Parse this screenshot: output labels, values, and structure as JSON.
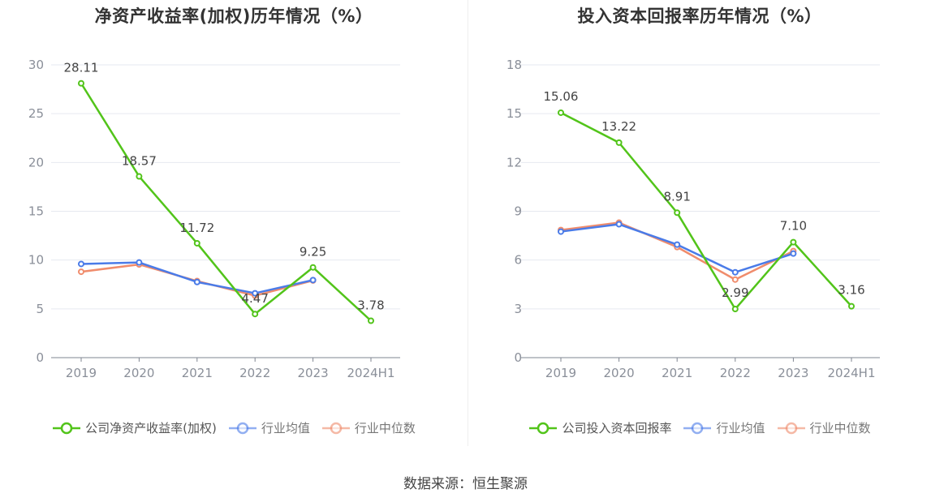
{
  "chart_data": [
    {
      "type": "line",
      "title": "净资产收益率(加权)历年情况（%）",
      "categories": [
        "2019",
        "2020",
        "2021",
        "2022",
        "2023",
        "2024H1"
      ],
      "ylim": [
        0,
        30
      ],
      "yticks": [
        0,
        5,
        10,
        15,
        20,
        25,
        30
      ],
      "grid": true,
      "legend_position": "bottom",
      "series": [
        {
          "name": "公司净资产收益率(加权)",
          "color": "#52c41a",
          "values": [
            28.11,
            18.57,
            11.72,
            4.47,
            9.25,
            3.78
          ],
          "labels": [
            "28.11",
            "18.57",
            "11.72",
            "4.47",
            "9.25",
            "3.78"
          ]
        },
        {
          "name": "行业均值",
          "color": "#4a7be8",
          "values": [
            9.6,
            9.75,
            7.75,
            6.6,
            7.95,
            null
          ]
        },
        {
          "name": "行业中位数",
          "color": "#f08c6c",
          "values": [
            8.8,
            9.55,
            7.85,
            6.35,
            7.9,
            null
          ]
        }
      ]
    },
    {
      "type": "line",
      "title": "投入资本回报率历年情况（%）",
      "categories": [
        "2019",
        "2020",
        "2021",
        "2022",
        "2023",
        "2024H1"
      ],
      "ylim": [
        0,
        18
      ],
      "yticks": [
        0,
        3,
        6,
        9,
        12,
        15,
        18
      ],
      "grid": true,
      "legend_position": "bottom",
      "series": [
        {
          "name": "公司投入资本回报率",
          "color": "#52c41a",
          "values": [
            15.06,
            13.22,
            8.91,
            2.99,
            7.1,
            3.16
          ],
          "labels": [
            "15.06",
            "13.22",
            "8.91",
            "2.99",
            "7.10",
            "3.16"
          ]
        },
        {
          "name": "行业均值",
          "color": "#4a7be8",
          "values": [
            7.75,
            8.2,
            6.95,
            5.25,
            6.4,
            null
          ]
        },
        {
          "name": "行业中位数",
          "color": "#f08c6c",
          "values": [
            7.85,
            8.3,
            6.8,
            4.8,
            6.55,
            null
          ]
        }
      ]
    }
  ],
  "source": "数据来源：恒生聚源"
}
